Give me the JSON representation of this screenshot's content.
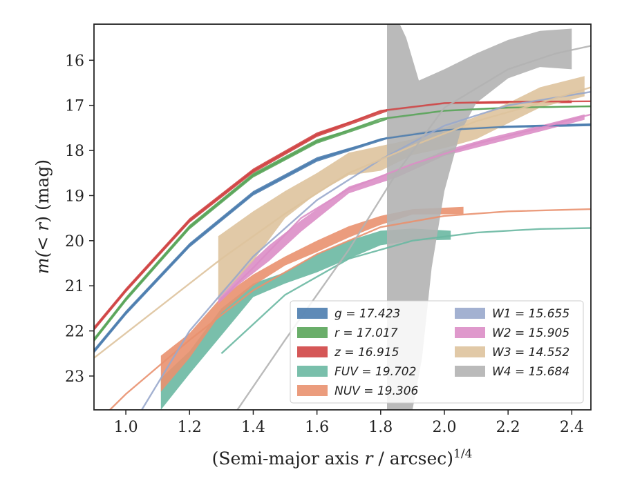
{
  "chart_data": {
    "type": "line",
    "xlabel_pre": "(Semi-major axis ",
    "xlabel_var": "r",
    "xlabel_post": " / arcsec)",
    "xlabel_sup": "1/4",
    "ylabel_pre": "m(",
    "ylabel_var": "< r",
    "ylabel_post": ") (mag)",
    "xlim": [
      0.9,
      2.46
    ],
    "ylim": [
      23.75,
      15.2
    ],
    "y_inverted": true,
    "xticks": [
      1.0,
      1.2,
      1.4,
      1.6,
      1.8,
      2.0,
      2.2,
      2.4
    ],
    "xtick_labels": [
      "1.0",
      "1.2",
      "1.4",
      "1.6",
      "1.8",
      "2.0",
      "2.2",
      "2.4"
    ],
    "yticks": [
      16,
      17,
      18,
      19,
      20,
      21,
      22,
      23
    ],
    "ytick_labels": [
      "16",
      "17",
      "18",
      "19",
      "20",
      "21",
      "22",
      "23"
    ],
    "grid": false,
    "legend_position": "lower-right",
    "series": [
      {
        "name": "g",
        "label": "g = 17.423",
        "color": "#4c7daf",
        "model": [
          [
            0.9,
            22.45
          ],
          [
            1.0,
            21.6
          ],
          [
            1.2,
            20.1
          ],
          [
            1.4,
            18.95
          ],
          [
            1.6,
            18.2
          ],
          [
            1.8,
            17.75
          ],
          [
            2.0,
            17.55
          ],
          [
            2.2,
            17.47
          ],
          [
            2.46,
            17.43
          ]
        ],
        "band_upper": [
          [
            0.9,
            22.4
          ],
          [
            1.0,
            21.55
          ],
          [
            1.2,
            20.05
          ],
          [
            1.4,
            18.9
          ],
          [
            1.6,
            18.15
          ],
          [
            1.82,
            17.7
          ],
          [
            2.0,
            17.5
          ],
          [
            2.2,
            17.45
          ],
          [
            2.46,
            17.4
          ]
        ],
        "band_lower": [
          [
            0.9,
            22.5
          ],
          [
            1.0,
            21.65
          ],
          [
            1.2,
            20.15
          ],
          [
            1.4,
            19.0
          ],
          [
            1.6,
            18.25
          ],
          [
            1.82,
            17.75
          ],
          [
            2.0,
            17.55
          ],
          [
            2.2,
            17.5
          ],
          [
            2.46,
            17.46
          ]
        ]
      },
      {
        "name": "r",
        "label": "r = 17.017",
        "color": "#5aa55a",
        "model": [
          [
            0.9,
            22.2
          ],
          [
            1.0,
            21.3
          ],
          [
            1.2,
            19.7
          ],
          [
            1.4,
            18.55
          ],
          [
            1.6,
            17.8
          ],
          [
            1.8,
            17.3
          ],
          [
            2.0,
            17.12
          ],
          [
            2.2,
            17.05
          ],
          [
            2.46,
            17.02
          ]
        ],
        "band_upper": [
          [
            0.9,
            22.15
          ],
          [
            1.0,
            21.25
          ],
          [
            1.2,
            19.65
          ],
          [
            1.4,
            18.5
          ],
          [
            1.6,
            17.75
          ],
          [
            1.82,
            17.28
          ],
          [
            2.0,
            17.1
          ],
          [
            2.2,
            17.04
          ],
          [
            2.46,
            17.01
          ]
        ],
        "band_lower": [
          [
            0.9,
            22.25
          ],
          [
            1.0,
            21.35
          ],
          [
            1.2,
            19.75
          ],
          [
            1.4,
            18.6
          ],
          [
            1.6,
            17.85
          ],
          [
            1.82,
            17.32
          ],
          [
            2.0,
            17.14
          ],
          [
            2.2,
            17.07
          ],
          [
            2.46,
            17.04
          ]
        ]
      },
      {
        "name": "z",
        "label": "z = 16.915",
        "color": "#d04545",
        "model": [
          [
            0.9,
            21.95
          ],
          [
            1.0,
            21.1
          ],
          [
            1.2,
            19.55
          ],
          [
            1.4,
            18.45
          ],
          [
            1.6,
            17.65
          ],
          [
            1.8,
            17.12
          ],
          [
            2.0,
            16.95
          ],
          [
            2.2,
            16.92
          ],
          [
            2.46,
            16.91
          ]
        ],
        "band_upper": [
          [
            0.9,
            21.9
          ],
          [
            1.0,
            21.05
          ],
          [
            1.2,
            19.5
          ],
          [
            1.4,
            18.4
          ],
          [
            1.6,
            17.6
          ],
          [
            1.82,
            17.08
          ],
          [
            2.0,
            16.93
          ],
          [
            2.2,
            16.9
          ],
          [
            2.4,
            16.89
          ]
        ],
        "band_lower": [
          [
            0.9,
            22.0
          ],
          [
            1.0,
            21.15
          ],
          [
            1.2,
            19.6
          ],
          [
            1.4,
            18.5
          ],
          [
            1.6,
            17.7
          ],
          [
            1.82,
            17.14
          ],
          [
            2.0,
            16.98
          ],
          [
            2.2,
            16.96
          ],
          [
            2.4,
            16.95
          ]
        ]
      },
      {
        "name": "FUV",
        "label": "FUV = 19.702",
        "color": "#6ab8a2",
        "model": [
          [
            1.3,
            22.5
          ],
          [
            1.5,
            21.2
          ],
          [
            1.7,
            20.4
          ],
          [
            1.9,
            20.0
          ],
          [
            2.1,
            19.82
          ],
          [
            2.3,
            19.74
          ],
          [
            2.46,
            19.72
          ]
        ],
        "band_upper": [
          [
            1.11,
            23.05
          ],
          [
            1.2,
            22.45
          ],
          [
            1.3,
            21.5
          ],
          [
            1.4,
            20.95
          ],
          [
            1.5,
            20.7
          ],
          [
            1.6,
            20.3
          ],
          [
            1.7,
            20.0
          ],
          [
            1.8,
            19.78
          ],
          [
            1.9,
            19.73
          ],
          [
            2.02,
            19.78
          ]
        ],
        "band_lower": [
          [
            1.11,
            23.75
          ],
          [
            1.2,
            22.95
          ],
          [
            1.3,
            22.1
          ],
          [
            1.4,
            21.25
          ],
          [
            1.5,
            20.95
          ],
          [
            1.6,
            20.7
          ],
          [
            1.7,
            20.4
          ],
          [
            1.8,
            20.1
          ],
          [
            1.9,
            20.0
          ],
          [
            2.02,
            19.98
          ]
        ]
      },
      {
        "name": "NUV",
        "label": "NUV = 19.306",
        "color": "#e9916f",
        "model": [
          [
            0.95,
            23.75
          ],
          [
            1.0,
            23.4
          ],
          [
            1.2,
            22.2
          ],
          [
            1.4,
            21.1
          ],
          [
            1.6,
            20.3
          ],
          [
            1.8,
            19.7
          ],
          [
            2.0,
            19.45
          ],
          [
            2.2,
            19.35
          ],
          [
            2.46,
            19.3
          ]
        ],
        "band_upper": [
          [
            1.11,
            22.55
          ],
          [
            1.2,
            22.05
          ],
          [
            1.3,
            21.25
          ],
          [
            1.4,
            20.75
          ],
          [
            1.5,
            20.35
          ],
          [
            1.6,
            20.0
          ],
          [
            1.7,
            19.68
          ],
          [
            1.8,
            19.45
          ],
          [
            1.9,
            19.3
          ],
          [
            2.06,
            19.25
          ]
        ],
        "band_lower": [
          [
            1.11,
            23.35
          ],
          [
            1.2,
            22.6
          ],
          [
            1.3,
            21.6
          ],
          [
            1.4,
            21.0
          ],
          [
            1.5,
            20.55
          ],
          [
            1.6,
            20.25
          ],
          [
            1.7,
            19.93
          ],
          [
            1.8,
            19.65
          ],
          [
            1.9,
            19.42
          ],
          [
            2.06,
            19.41
          ]
        ]
      },
      {
        "name": "W1",
        "label": "W1 = 15.655",
        "color": "#99a9cc",
        "model": [
          [
            1.05,
            23.75
          ],
          [
            1.2,
            22.0
          ],
          [
            1.4,
            20.35
          ],
          [
            1.6,
            19.1
          ],
          [
            1.8,
            18.2
          ],
          [
            2.0,
            17.45
          ],
          [
            2.2,
            17.0
          ],
          [
            2.46,
            16.7
          ]
        ],
        "band_upper": [],
        "band_lower": []
      },
      {
        "name": "W2",
        "label": "W2 = 15.905",
        "color": "#dc8ec6",
        "model": [
          [
            1.29,
            21.35
          ],
          [
            1.4,
            20.6
          ],
          [
            1.55,
            19.5
          ],
          [
            1.7,
            18.85
          ],
          [
            1.9,
            18.3
          ],
          [
            2.1,
            17.85
          ],
          [
            2.3,
            17.5
          ],
          [
            2.46,
            17.2
          ]
        ],
        "band_upper": [
          [
            1.29,
            21.2
          ],
          [
            1.35,
            20.75
          ],
          [
            1.45,
            20.1
          ],
          [
            1.55,
            19.55
          ],
          [
            1.7,
            18.8
          ],
          [
            1.85,
            18.45
          ],
          [
            2.0,
            18.0
          ],
          [
            2.15,
            17.7
          ],
          [
            2.3,
            17.45
          ],
          [
            2.44,
            17.2
          ]
        ],
        "band_lower": [
          [
            1.29,
            21.4
          ],
          [
            1.35,
            21.0
          ],
          [
            1.45,
            20.45
          ],
          [
            1.55,
            19.8
          ],
          [
            1.7,
            18.95
          ],
          [
            1.85,
            18.6
          ],
          [
            2.0,
            18.12
          ],
          [
            2.15,
            17.85
          ],
          [
            2.3,
            17.58
          ],
          [
            2.44,
            17.32
          ]
        ]
      },
      {
        "name": "W3",
        "label": "W3 = 14.552",
        "color": "#dec39d",
        "model": [
          [
            0.9,
            22.6
          ],
          [
            1.1,
            21.5
          ],
          [
            1.3,
            20.4
          ],
          [
            1.5,
            19.4
          ],
          [
            1.7,
            18.5
          ],
          [
            1.9,
            17.9
          ],
          [
            2.1,
            17.35
          ],
          [
            2.3,
            16.95
          ],
          [
            2.46,
            16.6
          ]
        ],
        "band_upper": [
          [
            1.29,
            19.9
          ],
          [
            1.4,
            19.35
          ],
          [
            1.5,
            18.9
          ],
          [
            1.6,
            18.5
          ],
          [
            1.7,
            18.05
          ],
          [
            1.8,
            17.9
          ],
          [
            1.9,
            17.75
          ],
          [
            2.0,
            17.5
          ],
          [
            2.1,
            17.25
          ],
          [
            2.2,
            16.95
          ],
          [
            2.3,
            16.6
          ],
          [
            2.44,
            16.35
          ]
        ],
        "band_lower": [
          [
            1.29,
            21.3
          ],
          [
            1.4,
            20.45
          ],
          [
            1.5,
            19.5
          ],
          [
            1.6,
            18.95
          ],
          [
            1.7,
            18.55
          ],
          [
            1.8,
            18.45
          ],
          [
            1.9,
            18.1
          ],
          [
            2.0,
            17.95
          ],
          [
            2.1,
            17.75
          ],
          [
            2.2,
            17.4
          ],
          [
            2.3,
            17.05
          ],
          [
            2.44,
            16.8
          ]
        ]
      },
      {
        "name": "W4",
        "label": "W4 = 15.684",
        "color": "#b3b3b3",
        "model": [
          [
            1.35,
            23.75
          ],
          [
            1.5,
            22.2
          ],
          [
            1.7,
            20.2
          ],
          [
            1.85,
            18.5
          ],
          [
            2.0,
            17.05
          ],
          [
            2.2,
            16.2
          ],
          [
            2.35,
            15.85
          ],
          [
            2.46,
            15.68
          ]
        ],
        "band_upper": [
          [
            1.82,
            15.2
          ],
          [
            1.86,
            15.2
          ],
          [
            1.88,
            15.5
          ],
          [
            1.92,
            16.45
          ],
          [
            2.0,
            16.2
          ],
          [
            2.1,
            15.85
          ],
          [
            2.2,
            15.55
          ],
          [
            2.3,
            15.35
          ],
          [
            2.4,
            15.3
          ]
        ],
        "band_lower": [
          [
            1.82,
            23.75
          ],
          [
            1.9,
            23.75
          ],
          [
            1.93,
            22.6
          ],
          [
            1.96,
            20.6
          ],
          [
            2.0,
            18.9
          ],
          [
            2.05,
            17.6
          ],
          [
            2.1,
            16.95
          ],
          [
            2.2,
            16.4
          ],
          [
            2.3,
            16.15
          ],
          [
            2.4,
            16.2
          ]
        ]
      }
    ]
  }
}
